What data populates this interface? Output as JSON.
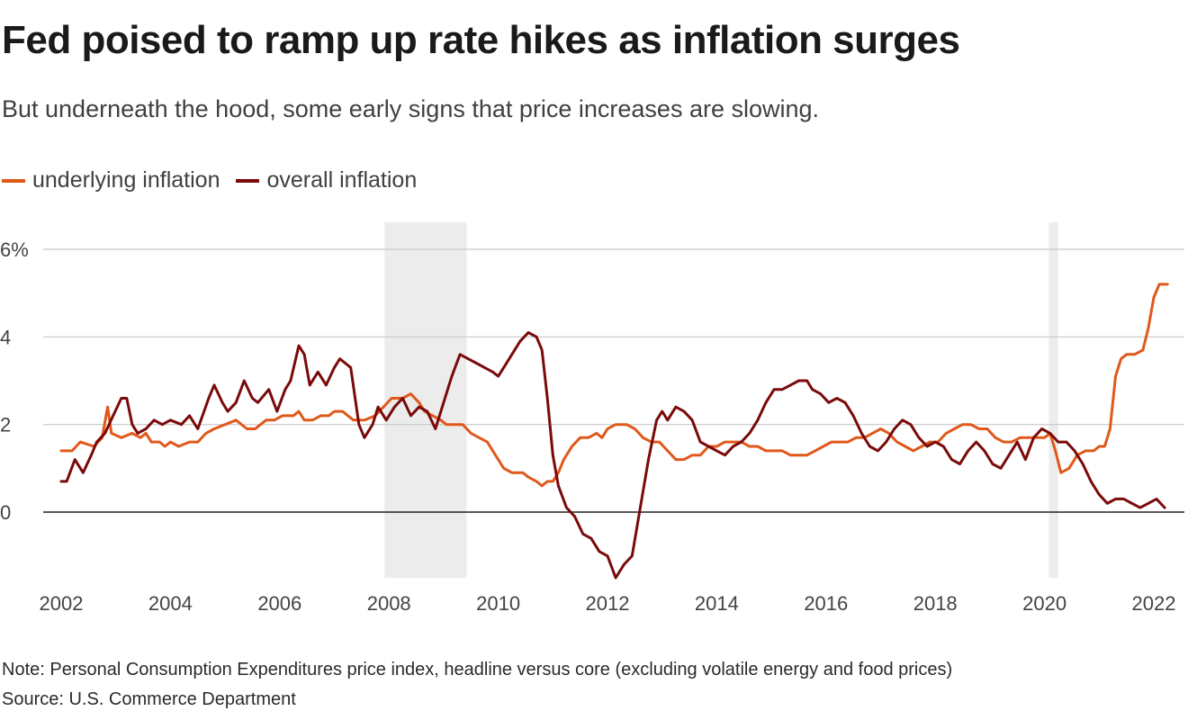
{
  "header": {
    "title": "Fed poised to ramp up rate hikes as inflation surges",
    "subtitle": "But underneath the hood, some early signs that price increases are slowing."
  },
  "footer": {
    "note": "Note: Personal Consumption Expenditures price index, headline versus core (excluding volatile energy and food prices)",
    "source": "Source: U.S. Commerce Department"
  },
  "colors": {
    "underlying": "#e0581a",
    "overall": "#7a0a0a",
    "recession_shade": "#ececec",
    "grid": "#c8c8c8",
    "zero_line": "#222222"
  },
  "chart_data": {
    "type": "line",
    "title": "Fed poised to ramp up rate hikes as inflation surges",
    "subtitle": "But underneath the hood, some early signs that price increases are slowing.",
    "xlabel": "",
    "ylabel": "",
    "xlim": [
      2002,
      2022.5
    ],
    "ylim": [
      -1.6,
      6.6
    ],
    "x_ticks": [
      "2002",
      "2004",
      "2006",
      "2008",
      "2010",
      "2012",
      "2014",
      "2016",
      "2018",
      "2020",
      "2022"
    ],
    "x_tick_values": [
      2002,
      2004,
      2006,
      2008,
      2010,
      2012,
      2014,
      2016,
      2018,
      2020,
      2022
    ],
    "y_ticks": [
      "0",
      "2",
      "4",
      "6%"
    ],
    "y_tick_values": [
      0,
      2,
      4,
      6
    ],
    "grid": true,
    "legend": "top-left",
    "shaded_periods": [
      {
        "start": 2007.92,
        "end": 2009.42
      },
      {
        "start": 2020.08,
        "end": 2020.25
      }
    ],
    "series": [
      {
        "name": "underlying inflation",
        "color": "#e0581a",
        "points": [
          [
            2002.0,
            1.4
          ],
          [
            2002.2,
            1.4
          ],
          [
            2002.35,
            1.6
          ],
          [
            2002.6,
            1.5
          ],
          [
            2002.75,
            1.7
          ],
          [
            2002.85,
            2.4
          ],
          [
            2002.92,
            1.8
          ],
          [
            2003.1,
            1.7
          ],
          [
            2003.3,
            1.8
          ],
          [
            2003.45,
            1.7
          ],
          [
            2003.55,
            1.8
          ],
          [
            2003.65,
            1.6
          ],
          [
            2003.8,
            1.6
          ],
          [
            2003.9,
            1.5
          ],
          [
            2004.0,
            1.6
          ],
          [
            2004.15,
            1.5
          ],
          [
            2004.35,
            1.6
          ],
          [
            2004.5,
            1.6
          ],
          [
            2004.65,
            1.8
          ],
          [
            2004.8,
            1.9
          ],
          [
            2005.0,
            2.0
          ],
          [
            2005.2,
            2.1
          ],
          [
            2005.4,
            1.9
          ],
          [
            2005.55,
            1.9
          ],
          [
            2005.75,
            2.1
          ],
          [
            2005.9,
            2.1
          ],
          [
            2006.05,
            2.2
          ],
          [
            2006.25,
            2.2
          ],
          [
            2006.35,
            2.3
          ],
          [
            2006.45,
            2.1
          ],
          [
            2006.6,
            2.1
          ],
          [
            2006.75,
            2.2
          ],
          [
            2006.9,
            2.2
          ],
          [
            2007.0,
            2.3
          ],
          [
            2007.15,
            2.3
          ],
          [
            2007.35,
            2.1
          ],
          [
            2007.55,
            2.1
          ],
          [
            2007.75,
            2.2
          ],
          [
            2007.9,
            2.4
          ],
          [
            2008.05,
            2.6
          ],
          [
            2008.25,
            2.6
          ],
          [
            2008.4,
            2.7
          ],
          [
            2008.55,
            2.5
          ],
          [
            2008.65,
            2.3
          ],
          [
            2008.8,
            2.2
          ],
          [
            2008.95,
            2.1
          ],
          [
            2009.05,
            2.0
          ],
          [
            2009.2,
            2.0
          ],
          [
            2009.35,
            2.0
          ],
          [
            2009.5,
            1.8
          ],
          [
            2009.65,
            1.7
          ],
          [
            2009.8,
            1.6
          ],
          [
            2009.9,
            1.4
          ],
          [
            2010.0,
            1.2
          ],
          [
            2010.1,
            1.0
          ],
          [
            2010.25,
            0.9
          ],
          [
            2010.45,
            0.9
          ],
          [
            2010.55,
            0.8
          ],
          [
            2010.7,
            0.7
          ],
          [
            2010.8,
            0.6
          ],
          [
            2010.9,
            0.7
          ],
          [
            2011.0,
            0.7
          ],
          [
            2011.1,
            0.9
          ],
          [
            2011.2,
            1.2
          ],
          [
            2011.35,
            1.5
          ],
          [
            2011.5,
            1.7
          ],
          [
            2011.65,
            1.7
          ],
          [
            2011.8,
            1.8
          ],
          [
            2011.9,
            1.7
          ],
          [
            2012.0,
            1.9
          ],
          [
            2012.15,
            2.0
          ],
          [
            2012.35,
            2.0
          ],
          [
            2012.5,
            1.9
          ],
          [
            2012.65,
            1.7
          ],
          [
            2012.8,
            1.6
          ],
          [
            2012.95,
            1.6
          ],
          [
            2013.1,
            1.4
          ],
          [
            2013.25,
            1.2
          ],
          [
            2013.4,
            1.2
          ],
          [
            2013.55,
            1.3
          ],
          [
            2013.7,
            1.3
          ],
          [
            2013.85,
            1.5
          ],
          [
            2014.0,
            1.5
          ],
          [
            2014.15,
            1.6
          ],
          [
            2014.3,
            1.6
          ],
          [
            2014.45,
            1.6
          ],
          [
            2014.6,
            1.5
          ],
          [
            2014.75,
            1.5
          ],
          [
            2014.9,
            1.4
          ],
          [
            2015.05,
            1.4
          ],
          [
            2015.2,
            1.4
          ],
          [
            2015.35,
            1.3
          ],
          [
            2015.5,
            1.3
          ],
          [
            2015.65,
            1.3
          ],
          [
            2015.8,
            1.4
          ],
          [
            2015.95,
            1.5
          ],
          [
            2016.1,
            1.6
          ],
          [
            2016.25,
            1.6
          ],
          [
            2016.4,
            1.6
          ],
          [
            2016.55,
            1.7
          ],
          [
            2016.7,
            1.7
          ],
          [
            2016.85,
            1.8
          ],
          [
            2017.0,
            1.9
          ],
          [
            2017.15,
            1.8
          ],
          [
            2017.3,
            1.6
          ],
          [
            2017.45,
            1.5
          ],
          [
            2017.6,
            1.4
          ],
          [
            2017.75,
            1.5
          ],
          [
            2017.9,
            1.6
          ],
          [
            2018.05,
            1.6
          ],
          [
            2018.2,
            1.8
          ],
          [
            2018.35,
            1.9
          ],
          [
            2018.5,
            2.0
          ],
          [
            2018.65,
            2.0
          ],
          [
            2018.8,
            1.9
          ],
          [
            2018.95,
            1.9
          ],
          [
            2019.1,
            1.7
          ],
          [
            2019.25,
            1.6
          ],
          [
            2019.4,
            1.6
          ],
          [
            2019.55,
            1.7
          ],
          [
            2019.7,
            1.7
          ],
          [
            2019.85,
            1.7
          ],
          [
            2020.0,
            1.7
          ],
          [
            2020.1,
            1.8
          ],
          [
            2020.2,
            1.4
          ],
          [
            2020.3,
            0.9
          ],
          [
            2020.45,
            1.0
          ],
          [
            2020.6,
            1.3
          ],
          [
            2020.75,
            1.4
          ],
          [
            2020.9,
            1.4
          ],
          [
            2021.0,
            1.5
          ],
          [
            2021.1,
            1.5
          ],
          [
            2021.2,
            1.9
          ],
          [
            2021.3,
            3.1
          ],
          [
            2021.4,
            3.5
          ],
          [
            2021.5,
            3.6
          ],
          [
            2021.65,
            3.6
          ],
          [
            2021.8,
            3.7
          ],
          [
            2021.9,
            4.2
          ],
          [
            2022.0,
            4.9
          ],
          [
            2022.1,
            5.2
          ],
          [
            2022.2,
            5.2
          ],
          [
            2022.25,
            5.2
          ]
        ]
      },
      {
        "name": "overall inflation",
        "color": "#7a0a0a",
        "points": [
          [
            2002.0,
            0.7
          ],
          [
            2002.1,
            0.7
          ],
          [
            2002.25,
            1.2
          ],
          [
            2002.4,
            0.9
          ],
          [
            2002.55,
            1.3
          ],
          [
            2002.65,
            1.6
          ],
          [
            2002.8,
            1.8
          ],
          [
            2002.95,
            2.2
          ],
          [
            2003.1,
            2.6
          ],
          [
            2003.2,
            2.6
          ],
          [
            2003.3,
            2.0
          ],
          [
            2003.4,
            1.8
          ],
          [
            2003.55,
            1.9
          ],
          [
            2003.7,
            2.1
          ],
          [
            2003.85,
            2.0
          ],
          [
            2004.0,
            2.1
          ],
          [
            2004.2,
            2.0
          ],
          [
            2004.35,
            2.2
          ],
          [
            2004.5,
            1.9
          ],
          [
            2004.7,
            2.6
          ],
          [
            2004.8,
            2.9
          ],
          [
            2004.95,
            2.5
          ],
          [
            2005.05,
            2.3
          ],
          [
            2005.2,
            2.5
          ],
          [
            2005.35,
            3.0
          ],
          [
            2005.5,
            2.6
          ],
          [
            2005.6,
            2.5
          ],
          [
            2005.8,
            2.8
          ],
          [
            2005.95,
            2.3
          ],
          [
            2006.1,
            2.8
          ],
          [
            2006.2,
            3.0
          ],
          [
            2006.35,
            3.8
          ],
          [
            2006.45,
            3.6
          ],
          [
            2006.55,
            2.9
          ],
          [
            2006.7,
            3.2
          ],
          [
            2006.85,
            2.9
          ],
          [
            2007.0,
            3.3
          ],
          [
            2007.1,
            3.5
          ],
          [
            2007.2,
            3.4
          ],
          [
            2007.3,
            3.3
          ],
          [
            2007.45,
            2.0
          ],
          [
            2007.55,
            1.7
          ],
          [
            2007.7,
            2.0
          ],
          [
            2007.8,
            2.4
          ],
          [
            2007.95,
            2.1
          ],
          [
            2008.1,
            2.4
          ],
          [
            2008.25,
            2.6
          ],
          [
            2008.4,
            2.2
          ],
          [
            2008.55,
            2.4
          ],
          [
            2008.7,
            2.3
          ],
          [
            2008.85,
            1.9
          ],
          [
            2009.0,
            2.5
          ],
          [
            2009.15,
            3.1
          ],
          [
            2009.3,
            3.6
          ],
          [
            2009.45,
            3.5
          ],
          [
            2009.6,
            3.4
          ],
          [
            2009.75,
            3.3
          ],
          [
            2009.9,
            3.2
          ],
          [
            2010.0,
            3.1
          ],
          [
            2010.1,
            3.3
          ],
          [
            2010.25,
            3.6
          ],
          [
            2010.4,
            3.9
          ],
          [
            2010.55,
            4.1
          ],
          [
            2010.7,
            4.0
          ],
          [
            2010.8,
            3.7
          ],
          [
            2010.9,
            2.6
          ],
          [
            2011.0,
            1.3
          ],
          [
            2011.1,
            0.6
          ],
          [
            2011.25,
            0.1
          ],
          [
            2011.4,
            -0.1
          ],
          [
            2011.55,
            -0.5
          ],
          [
            2011.7,
            -0.6
          ],
          [
            2011.85,
            -0.9
          ],
          [
            2012.0,
            -1.0
          ],
          [
            2012.15,
            -1.5
          ],
          [
            2012.3,
            -1.2
          ],
          [
            2012.45,
            -1.0
          ],
          [
            2012.6,
            0.1
          ],
          [
            2012.75,
            1.2
          ],
          [
            2012.9,
            2.1
          ],
          [
            2013.0,
            2.3
          ],
          [
            2013.1,
            2.1
          ],
          [
            2013.25,
            2.4
          ],
          [
            2013.4,
            2.3
          ],
          [
            2013.55,
            2.1
          ],
          [
            2013.7,
            1.6
          ],
          [
            2013.85,
            1.5
          ],
          [
            2014.0,
            1.4
          ],
          [
            2014.15,
            1.3
          ],
          [
            2014.3,
            1.5
          ],
          [
            2014.45,
            1.6
          ],
          [
            2014.6,
            1.8
          ],
          [
            2014.75,
            2.1
          ],
          [
            2014.9,
            2.5
          ],
          [
            2015.05,
            2.8
          ],
          [
            2015.2,
            2.8
          ],
          [
            2015.35,
            2.9
          ],
          [
            2015.5,
            3.0
          ],
          [
            2015.65,
            3.0
          ],
          [
            2015.75,
            2.8
          ],
          [
            2015.9,
            2.7
          ],
          [
            2016.05,
            2.5
          ],
          [
            2016.2,
            2.6
          ],
          [
            2016.35,
            2.5
          ],
          [
            2016.5,
            2.2
          ],
          [
            2016.65,
            1.8
          ],
          [
            2016.8,
            1.5
          ],
          [
            2016.95,
            1.4
          ],
          [
            2017.1,
            1.6
          ],
          [
            2017.25,
            1.9
          ],
          [
            2017.4,
            2.1
          ],
          [
            2017.55,
            2.0
          ],
          [
            2017.7,
            1.7
          ],
          [
            2017.85,
            1.5
          ],
          [
            2018.0,
            1.6
          ],
          [
            2018.15,
            1.5
          ],
          [
            2018.3,
            1.2
          ],
          [
            2018.45,
            1.1
          ],
          [
            2018.6,
            1.4
          ],
          [
            2018.75,
            1.6
          ],
          [
            2018.9,
            1.4
          ],
          [
            2019.05,
            1.1
          ],
          [
            2019.2,
            1.0
          ],
          [
            2019.35,
            1.3
          ],
          [
            2019.5,
            1.6
          ],
          [
            2019.65,
            1.2
          ],
          [
            2019.8,
            1.7
          ],
          [
            2019.95,
            1.9
          ],
          [
            2020.1,
            1.8
          ],
          [
            2020.25,
            1.6
          ],
          [
            2020.4,
            1.6
          ],
          [
            2020.55,
            1.4
          ],
          [
            2020.7,
            1.1
          ],
          [
            2020.85,
            0.7
          ],
          [
            2021.0,
            0.4
          ],
          [
            2021.15,
            0.2
          ],
          [
            2021.3,
            0.3
          ],
          [
            2021.45,
            0.3
          ],
          [
            2021.6,
            0.2
          ],
          [
            2021.75,
            0.1
          ],
          [
            2021.9,
            0.2
          ],
          [
            2022.05,
            0.3
          ],
          [
            2022.2,
            0.1
          ]
        ]
      }
    ]
  },
  "legend_labels": {
    "underlying": "underlying inflation",
    "overall": "overall inflation"
  }
}
